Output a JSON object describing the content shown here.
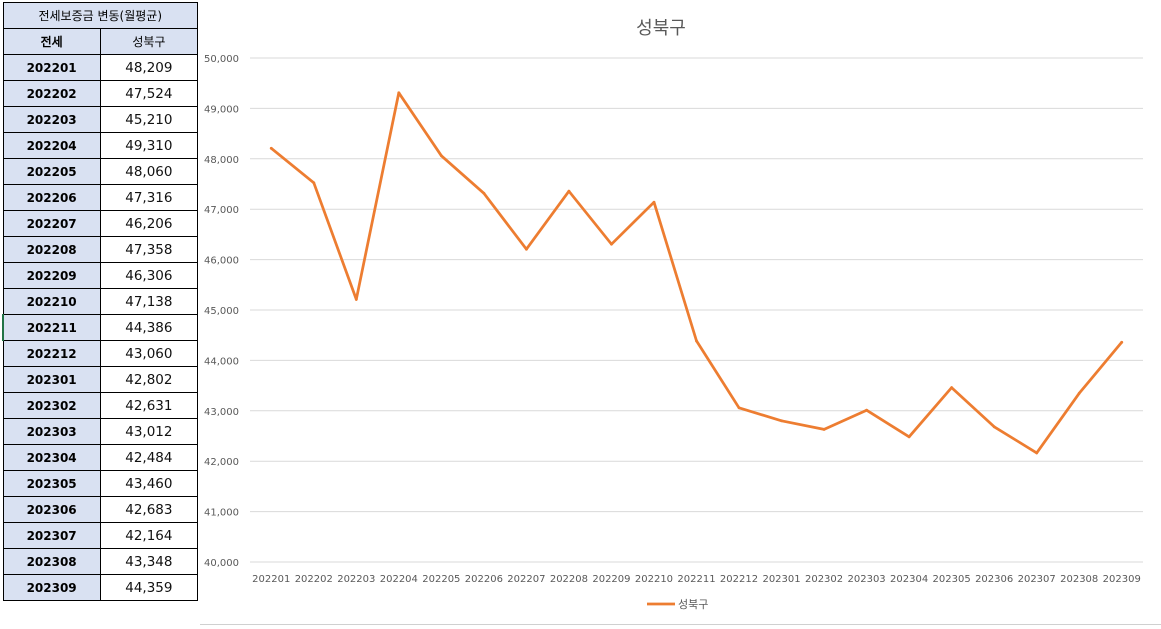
{
  "table": {
    "title": "전세보증금 변동(월평균)",
    "header_left": "전세",
    "header_right": "성북구",
    "rows": [
      {
        "month": "202201",
        "value": "48,209"
      },
      {
        "month": "202202",
        "value": "47,524"
      },
      {
        "month": "202203",
        "value": "45,210"
      },
      {
        "month": "202204",
        "value": "49,310"
      },
      {
        "month": "202205",
        "value": "48,060"
      },
      {
        "month": "202206",
        "value": "47,316"
      },
      {
        "month": "202207",
        "value": "46,206"
      },
      {
        "month": "202208",
        "value": "47,358"
      },
      {
        "month": "202209",
        "value": "46,306"
      },
      {
        "month": "202210",
        "value": "47,138"
      },
      {
        "month": "202211",
        "value": "44,386"
      },
      {
        "month": "202212",
        "value": "43,060"
      },
      {
        "month": "202301",
        "value": "42,802"
      },
      {
        "month": "202302",
        "value": "42,631"
      },
      {
        "month": "202303",
        "value": "43,012"
      },
      {
        "month": "202304",
        "value": "42,484"
      },
      {
        "month": "202305",
        "value": "43,460"
      },
      {
        "month": "202306",
        "value": "42,683"
      },
      {
        "month": "202307",
        "value": "42,164"
      },
      {
        "month": "202308",
        "value": "43,348"
      },
      {
        "month": "202309",
        "value": "44,359"
      }
    ]
  },
  "chart_data": {
    "type": "line",
    "title": "성북구",
    "categories": [
      "202201",
      "202202",
      "202203",
      "202204",
      "202205",
      "202206",
      "202207",
      "202208",
      "202209",
      "202210",
      "202211",
      "202212",
      "202301",
      "202302",
      "202303",
      "202304",
      "202305",
      "202306",
      "202307",
      "202308",
      "202309"
    ],
    "series": [
      {
        "name": "성북구",
        "color": "#ed7d31",
        "values": [
          48209,
          47524,
          45210,
          49310,
          48060,
          47316,
          46206,
          47358,
          46306,
          47138,
          44386,
          43060,
          42802,
          42631,
          43012,
          42484,
          43460,
          42683,
          42164,
          43348,
          44359
        ]
      }
    ],
    "ylim": [
      40000,
      50000
    ],
    "yticks": [
      "40,000",
      "41,000",
      "42,000",
      "43,000",
      "44,000",
      "45,000",
      "46,000",
      "47,000",
      "48,000",
      "49,000",
      "50,000"
    ],
    "grid": true,
    "legend": "bottom"
  }
}
